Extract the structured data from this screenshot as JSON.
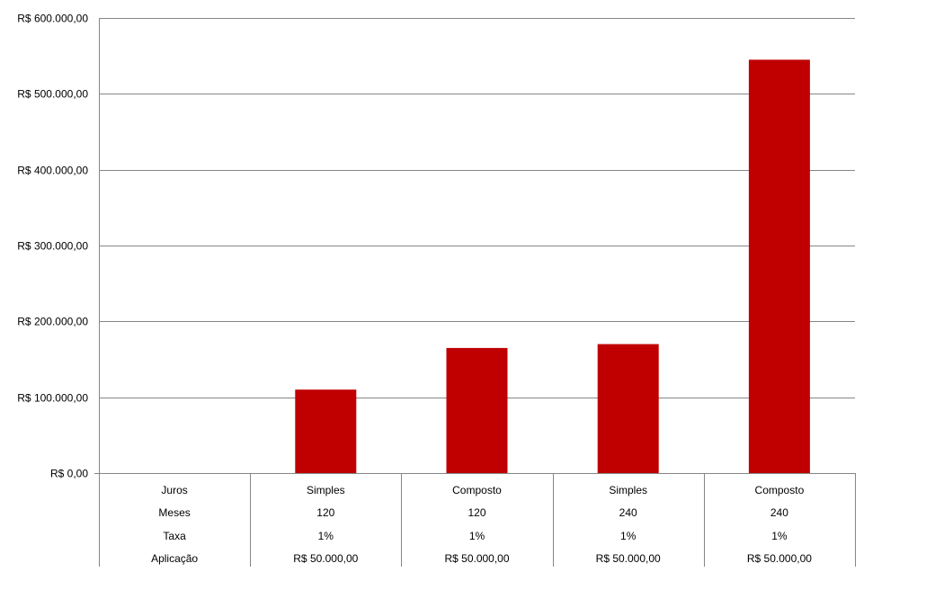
{
  "chart_data": {
    "type": "bar",
    "categories": [
      "Juros",
      "Simples",
      "Composto",
      "Simples",
      "Composto"
    ],
    "values": [
      0,
      110000,
      165000,
      170000,
      545000
    ],
    "ylim": [
      0,
      600000
    ],
    "y_ticks": [
      {
        "value": 0,
        "label": "R$ 0,00"
      },
      {
        "value": 100000,
        "label": "R$ 100.000,00"
      },
      {
        "value": 200000,
        "label": "R$ 200.000,00"
      },
      {
        "value": 300000,
        "label": "R$ 300.000,00"
      },
      {
        "value": 400000,
        "label": "R$ 400.000,00"
      },
      {
        "value": 500000,
        "label": "R$ 500.000,00"
      },
      {
        "value": 600000,
        "label": "R$ 600.000,00"
      }
    ],
    "data_table": [
      [
        "Juros",
        "Simples",
        "Composto",
        "Simples",
        "Composto"
      ],
      [
        "Meses",
        "120",
        "120",
        "240",
        "240"
      ],
      [
        "Taxa",
        "1%",
        "1%",
        "1%",
        "1%"
      ],
      [
        "Aplicação",
        "R$ 50.000,00",
        "R$ 50.000,00",
        "R$ 50.000,00",
        "R$ 50.000,00"
      ]
    ],
    "grid": true,
    "legend": "none",
    "colors": {
      "bar": "#C00000",
      "grid": "#868686",
      "axis": "#868686"
    }
  }
}
